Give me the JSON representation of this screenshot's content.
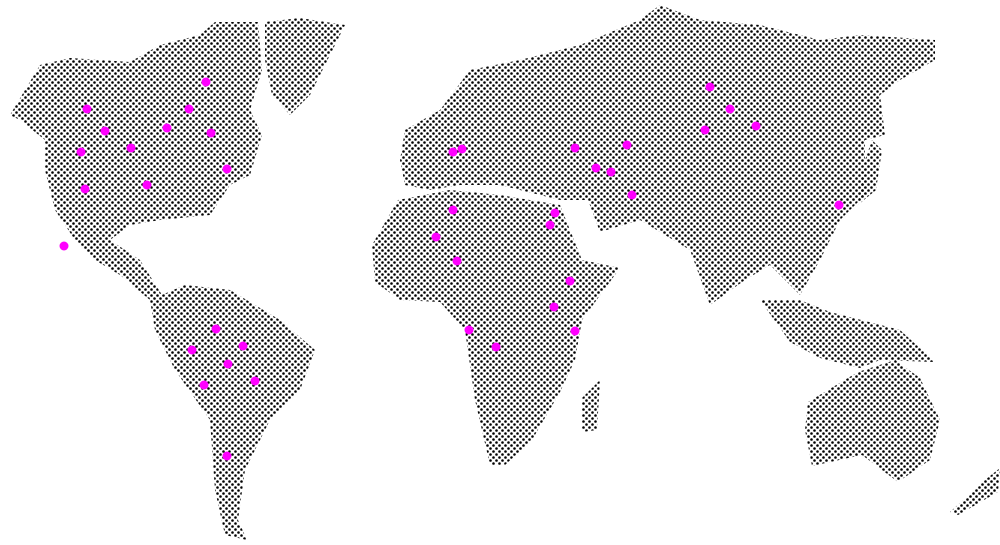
{
  "map": {
    "style": "halftone-dotted-world",
    "land_dot_color": "#000000",
    "background_color": "#ffffff",
    "marker_color": "#ff00ff",
    "regions": [
      "north-america",
      "greenland",
      "south-america",
      "eurasia",
      "africa",
      "australia",
      "southeast-asia-islands",
      "madagascar",
      "japan",
      "new-zealand"
    ],
    "marker_count": 39
  }
}
